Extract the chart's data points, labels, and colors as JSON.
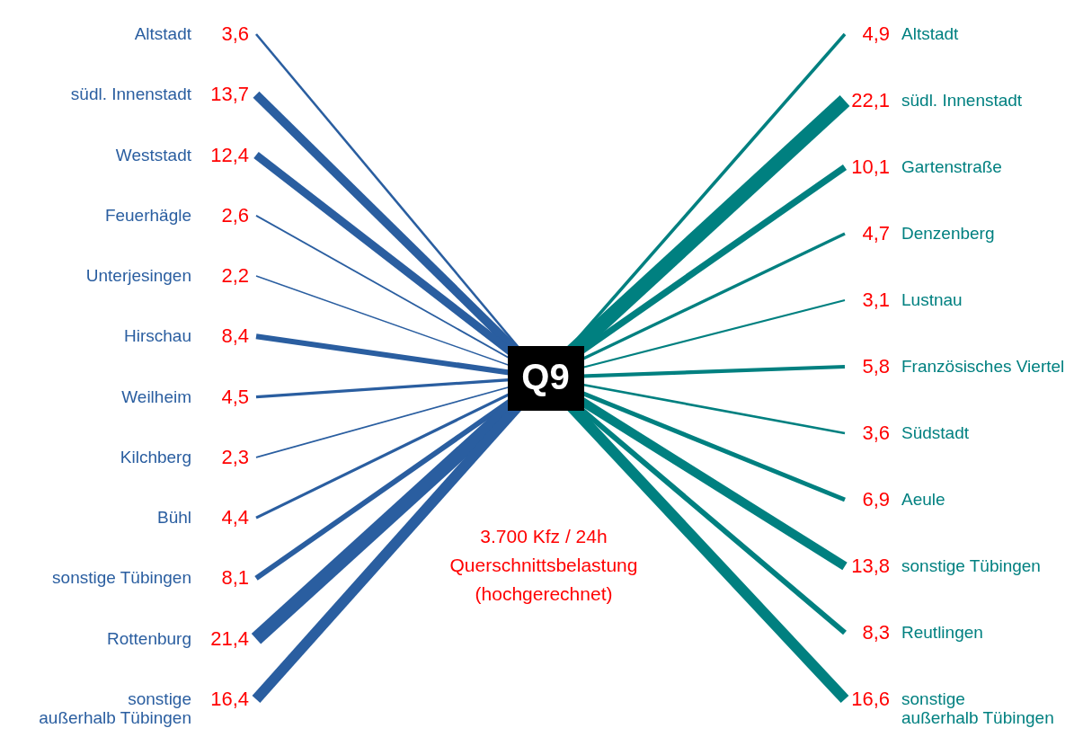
{
  "chart_data": {
    "type": "other",
    "categories": [
      "Altstadt",
      "südl. Innenstadt",
      "Weststadt",
      "Feuerhägle",
      "Unterjesingen",
      "Hirschau",
      "Weilheim",
      "Kilchberg",
      "Bühl",
      "sonstige Tübingen",
      "Rottenburg",
      "sonstige\naußerhalb Tübingen",
      "Altstadt",
      "südl. Innenstadt",
      "Gartenstraße",
      "Denzenberg",
      "Lustnau",
      "Französisches Viertel",
      "Südstadt",
      "Aeule",
      "sonstige Tübingen",
      "Reutlingen",
      "sonstige\naußerhalb Tübingen"
    ],
    "series": [
      {
        "color": "#2a5ea0",
        "values": [
          3.6,
          13.7,
          12.4,
          2.6,
          2.2,
          8.4,
          4.5,
          2.3,
          4.4,
          8.1,
          21.4,
          16.4,
          null,
          null,
          null,
          null,
          null,
          null,
          null,
          null,
          null,
          null,
          null
        ],
        "value_labels": [
          "3,6",
          "13,7",
          "12,4",
          "2,6",
          "2,2",
          "8,4",
          "4,5",
          "2,3",
          "4,4",
          "8,1",
          "21,4",
          "16,4",
          null,
          null,
          null,
          null,
          null,
          null,
          null,
          null,
          null,
          null,
          null
        ]
      },
      {
        "color": "#008080",
        "values": [
          null,
          null,
          null,
          null,
          null,
          null,
          null,
          null,
          null,
          null,
          null,
          null,
          4.9,
          22.1,
          10.1,
          4.7,
          3.1,
          5.8,
          3.6,
          6.9,
          13.8,
          8.3,
          16.6
        ],
        "value_labels": [
          null,
          null,
          null,
          null,
          null,
          null,
          null,
          null,
          null,
          null,
          null,
          null,
          "4,9",
          "22,1",
          "10,1",
          "4,7",
          "3,1",
          "5,8",
          "3,6",
          "6,9",
          "13,8",
          "8,3",
          "16,6"
        ]
      }
    ],
    "annotations": [
      "Q9",
      "3.700 Kfz / 24h\nQuerschnittsbelastung\n(hochgerechnet)"
    ]
  }
}
